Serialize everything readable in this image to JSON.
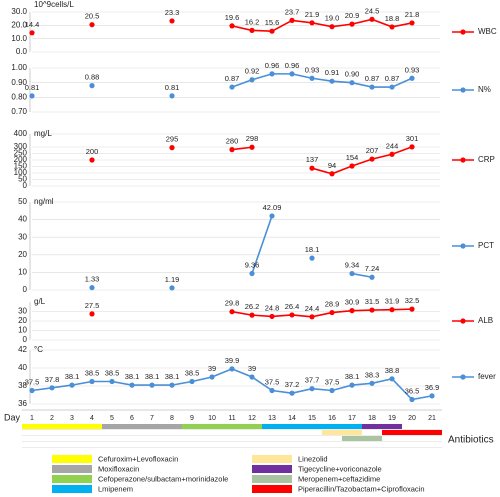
{
  "chart_data": [
    {
      "type": "line",
      "y_label": "10^9cells/L",
      "x": [
        1,
        2,
        3,
        4,
        5,
        6,
        7,
        8,
        9,
        10,
        11,
        12,
        13,
        14,
        15,
        16,
        17,
        18,
        19,
        20,
        21
      ],
      "xlim": [
        1,
        21
      ],
      "ylim": [
        0,
        30
      ],
      "yticks": [
        {
          "value": 0,
          "label": "0.0"
        },
        {
          "value": 10,
          "label": "10.0"
        },
        {
          "value": 20,
          "label": "20.0"
        },
        {
          "value": 30,
          "label": "30.0"
        }
      ],
      "grid": true,
      "series": [
        {
          "name": "WBC",
          "color": "#ff0000",
          "values": [
            14.4,
            null,
            null,
            20.5,
            null,
            null,
            null,
            23.3,
            null,
            null,
            19.6,
            16.2,
            15.6,
            23.7,
            21.9,
            19.0,
            20.9,
            24.5,
            18.8,
            21.8,
            null
          ],
          "value_labels": [
            "14.4",
            null,
            null,
            "20.5",
            null,
            null,
            null,
            "23.3",
            null,
            null,
            "19.6",
            "16.2",
            "15.6",
            "23.7",
            "21.9",
            "19.0",
            "20.9",
            "24.5",
            "18.8",
            "21.8",
            null
          ]
        }
      ]
    },
    {
      "type": "line",
      "x": [
        1,
        2,
        3,
        4,
        5,
        6,
        7,
        8,
        9,
        10,
        11,
        12,
        13,
        14,
        15,
        16,
        17,
        18,
        19,
        20,
        21
      ],
      "xlim": [
        1,
        21
      ],
      "ylim": [
        0.7,
        1.0
      ],
      "yticks": [
        {
          "value": 0.7,
          "label": "0.70"
        },
        {
          "value": 0.8,
          "label": "0.80"
        },
        {
          "value": 0.9,
          "label": "0.90"
        },
        {
          "value": 1.0,
          "label": "1.00"
        }
      ],
      "grid": true,
      "series": [
        {
          "name": "N%",
          "color": "#4a8fd8",
          "values": [
            0.81,
            null,
            null,
            0.88,
            null,
            null,
            null,
            0.81,
            null,
            null,
            0.87,
            0.92,
            0.96,
            0.96,
            0.93,
            0.91,
            0.9,
            0.87,
            0.87,
            0.93,
            null
          ],
          "value_labels": [
            "0.81",
            null,
            null,
            "0.88",
            null,
            null,
            null,
            "0.81",
            null,
            null,
            "0.87",
            "0.92",
            "0.96",
            "0.96",
            "0.93",
            "0.91",
            "0.90",
            "0.87",
            "0.87",
            "0.93",
            null
          ]
        }
      ]
    },
    {
      "type": "line",
      "y_label": "mg/L",
      "x": [
        1,
        2,
        3,
        4,
        5,
        6,
        7,
        8,
        9,
        10,
        11,
        12,
        13,
        14,
        15,
        16,
        17,
        18,
        19,
        20,
        21
      ],
      "xlim": [
        1,
        21
      ],
      "ylim": [
        0,
        400
      ],
      "yticks": [
        0,
        50,
        100,
        150,
        200,
        250,
        300,
        400
      ],
      "grid": true,
      "series": [
        {
          "name": "CRP",
          "color": "#ff0000",
          "values": [
            null,
            null,
            null,
            200,
            null,
            null,
            null,
            295,
            null,
            null,
            280,
            298,
            null,
            null,
            137,
            94,
            154,
            207,
            244,
            301,
            null
          ]
        }
      ]
    },
    {
      "type": "line",
      "y_label": "ng/ml",
      "x": [
        1,
        2,
        3,
        4,
        5,
        6,
        7,
        8,
        9,
        10,
        11,
        12,
        13,
        14,
        15,
        16,
        17,
        18,
        19,
        20,
        21
      ],
      "xlim": [
        1,
        21
      ],
      "ylim": [
        0,
        50
      ],
      "yticks": [
        0,
        10,
        20,
        30,
        40,
        50
      ],
      "grid": true,
      "series": [
        {
          "name": "PCT",
          "color": "#4a8fd8",
          "values": [
            null,
            null,
            null,
            1.33,
            null,
            null,
            null,
            1.19,
            null,
            null,
            null,
            9.36,
            42.09,
            null,
            18.1,
            null,
            9.34,
            7.24,
            null,
            null,
            null
          ]
        }
      ]
    },
    {
      "type": "line",
      "y_label": "g/L",
      "x": [
        1,
        2,
        3,
        4,
        5,
        6,
        7,
        8,
        9,
        10,
        11,
        12,
        13,
        14,
        15,
        16,
        17,
        18,
        19,
        20,
        21
      ],
      "xlim": [
        1,
        21
      ],
      "ylim": [
        0,
        40
      ],
      "yticks": [
        0,
        10,
        20,
        30
      ],
      "grid": true,
      "series": [
        {
          "name": "ALB",
          "color": "#ff0000",
          "values": [
            null,
            null,
            null,
            27.5,
            null,
            null,
            null,
            null,
            null,
            null,
            29.8,
            26.2,
            24.8,
            26.4,
            24.4,
            28.9,
            30.9,
            31.5,
            31.9,
            32.5,
            null
          ]
        }
      ]
    },
    {
      "type": "line",
      "y_label": "°C",
      "x_label": "Day",
      "x": [
        1,
        2,
        3,
        4,
        5,
        6,
        7,
        8,
        9,
        10,
        11,
        12,
        13,
        14,
        15,
        16,
        17,
        18,
        19,
        20,
        21
      ],
      "xlim": [
        1,
        21
      ],
      "ylim": [
        36,
        42
      ],
      "yticks": [
        36,
        38,
        40,
        42
      ],
      "grid": true,
      "series": [
        {
          "name": "fever",
          "color": "#4a8fd8",
          "values": [
            37.5,
            37.8,
            38.1,
            38.5,
            38.5,
            38.1,
            38.1,
            38.1,
            38.5,
            39,
            39.9,
            39,
            37.5,
            37.2,
            37.7,
            37.5,
            38.1,
            38.3,
            38.8,
            36.5,
            36.9
          ]
        }
      ]
    }
  ],
  "antibiotics": {
    "label": "Antibiotics",
    "items": [
      {
        "name": "Cefuroxim+Levofloxacin",
        "color": "#ffff00",
        "days": [
          1,
          4
        ]
      },
      {
        "name": "Moxifloxacin",
        "color": "#a6a6a6",
        "days": [
          5,
          8
        ]
      },
      {
        "name": "Cefoperazone/sulbactam+morinidazole",
        "color": "#92d050",
        "days": [
          9,
          12
        ]
      },
      {
        "name": "Lmipenem",
        "color": "#00b0f0",
        "days": [
          13,
          17
        ]
      },
      {
        "name": "Linezolid",
        "color": "#ffe699",
        "days": [
          16,
          17
        ]
      },
      {
        "name": "Tigecycline+voriconazole",
        "color": "#7030a0",
        "days": [
          18,
          19
        ]
      },
      {
        "name": "Meropenem+ceftazidime",
        "color": "#a9c4a0",
        "days": [
          17,
          18
        ]
      },
      {
        "name": "Piperacillin/Tazobactam+Ciprofloxacin",
        "color": "#ff0000",
        "days": [
          19,
          21
        ]
      }
    ]
  }
}
